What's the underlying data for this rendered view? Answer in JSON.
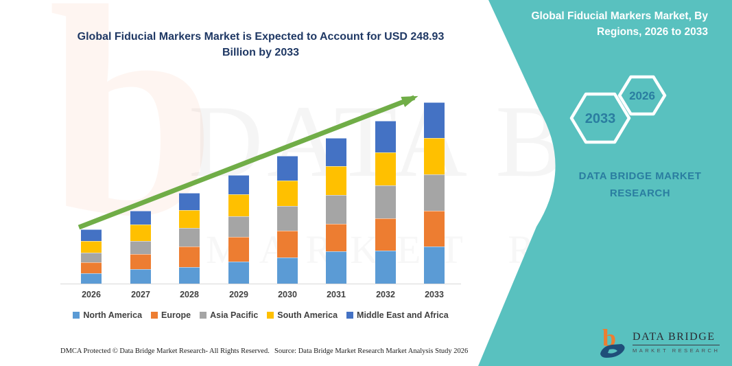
{
  "title": "Global Fiducial Markers Market is Expected to Account for USD 248.93 Billion by 2033",
  "side_panel": {
    "heading": "Global Fiducial Markers Market, By Regions, 2026 to 2033",
    "hexagon_large_label": "2033",
    "hexagon_small_label": "2026",
    "brand_text": "DATA BRIDGE MARKET RESEARCH",
    "teal_color": "#59C1BF",
    "accent_text_color": "#2A7DA0"
  },
  "watermark": {
    "line1": "DATA BRI",
    "line2": "MARKET RES",
    "letter": "b"
  },
  "footer": {
    "dmca": "DMCA Protected © Data Bridge Market Research-  All Rights Reserved.",
    "source": "Source: Data Bridge Market Research  Market Analysis Study 2026"
  },
  "logo": {
    "title": "DATA BRIDGE",
    "subtitle": "MARKET RESEARCH"
  },
  "chart_data": {
    "type": "bar",
    "stacked": true,
    "title": "Global Fiducial Markers Market is Expected to Account for USD 248.93 Billion by 2033",
    "unit": "USD Billion",
    "xlabel": "",
    "ylabel": "",
    "value_axis_visible": false,
    "grid": false,
    "legend_position": "bottom",
    "trend_arrow": true,
    "trend_arrow_color": "#70AD47",
    "categories": [
      "2026",
      "2027",
      "2028",
      "2029",
      "2030",
      "2031",
      "2032",
      "2033"
    ],
    "series": [
      {
        "name": "North America",
        "color": "#5B9BD5",
        "values": [
          14.2,
          19.8,
          22.6,
          30.2,
          35.8,
          44.3,
          45.3,
          50.9
        ]
      },
      {
        "name": "Europe",
        "color": "#ED7D31",
        "values": [
          15.1,
          20.7,
          28.3,
          33.9,
          36.8,
          37.7,
          44.3,
          49.0
        ]
      },
      {
        "name": "Asia Pacific",
        "color": "#A5A5A5",
        "values": [
          13.2,
          17.9,
          25.5,
          28.3,
          33.9,
          39.6,
          45.3,
          50.0
        ]
      },
      {
        "name": "South America",
        "color": "#FFC000",
        "values": [
          16.0,
          22.6,
          24.5,
          30.2,
          34.9,
          39.6,
          45.3,
          50.0
        ]
      },
      {
        "name": "Middle East and Africa",
        "color": "#4472C4",
        "values": [
          16.0,
          18.9,
          23.6,
          26.4,
          33.9,
          38.7,
          43.4,
          49.0
        ]
      }
    ],
    "totals_estimated": [
      74.5,
      99.9,
      124.5,
      149.0,
      175.3,
      199.9,
      223.6,
      248.9
    ],
    "final_value_label": "248.93"
  }
}
